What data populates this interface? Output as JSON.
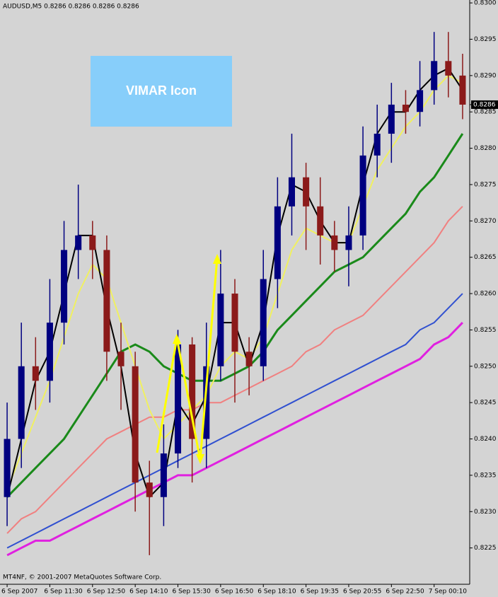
{
  "chart_data": {
    "type": "candlestick",
    "title": "AUDUSD,M5  0.8286 0.8286 0.8286 0.8286",
    "annotation": "VIMAR Icon",
    "footer": "MT4NF, © 2001-2007 MetaQuotes Software Corp.",
    "categories": [
      "6 Sep 2007",
      null,
      null,
      "6 Sep 11:30",
      null,
      null,
      "6 Sep 12:50",
      null,
      null,
      "6 Sep 14:10",
      null,
      null,
      "6 Sep 15:30",
      null,
      null,
      "6 Sep 16:50",
      null,
      null,
      "6 Sep 18:10",
      null,
      null,
      "6 Sep 19:35",
      null,
      null,
      "6 Sep 20:55",
      null,
      null,
      "6 Sep 22:50",
      null,
      null,
      "7 Sep 00:10",
      null,
      null
    ],
    "candles": {
      "up_color": "#000080",
      "down_color": "#8b1a1a",
      "open": [
        0.8232,
        0.824,
        0.825,
        0.8248,
        0.8256,
        0.8266,
        0.8268,
        0.8266,
        0.8252,
        0.825,
        0.8234,
        0.8232,
        0.8238,
        0.8253,
        0.824,
        0.825,
        0.826,
        0.8252,
        0.825,
        0.8262,
        0.8272,
        0.8276,
        0.8272,
        0.8268,
        0.8266,
        0.8268,
        0.8279,
        0.8282,
        0.8286,
        0.8285,
        0.8288,
        0.8292,
        0.829
      ],
      "high": [
        0.8245,
        0.8256,
        0.8254,
        0.8262,
        0.827,
        0.8275,
        0.827,
        0.8268,
        0.8256,
        0.8252,
        0.8237,
        0.8242,
        0.8255,
        0.8254,
        0.8256,
        0.8266,
        0.8262,
        0.8254,
        0.8266,
        0.8276,
        0.8282,
        0.8278,
        0.8276,
        0.827,
        0.8272,
        0.8283,
        0.8286,
        0.8289,
        0.8288,
        0.8292,
        0.8296,
        0.8296,
        0.8293
      ],
      "low": [
        0.8228,
        0.8236,
        0.8244,
        0.8245,
        0.8253,
        0.8262,
        0.8262,
        0.8248,
        0.8244,
        0.823,
        0.8224,
        0.8228,
        0.8236,
        0.8234,
        0.8236,
        0.8248,
        0.8245,
        0.8246,
        0.8248,
        0.8258,
        0.8268,
        0.8266,
        0.8264,
        0.8263,
        0.8261,
        0.8266,
        0.8276,
        0.8278,
        0.8282,
        0.8283,
        0.8286,
        0.8287,
        0.8284
      ],
      "close": [
        0.824,
        0.825,
        0.8248,
        0.8256,
        0.8266,
        0.8268,
        0.8266,
        0.8252,
        0.825,
        0.8234,
        0.8232,
        0.8238,
        0.8253,
        0.824,
        0.825,
        0.826,
        0.8252,
        0.825,
        0.8262,
        0.8272,
        0.8276,
        0.8272,
        0.8268,
        0.8266,
        0.8268,
        0.8279,
        0.8282,
        0.8286,
        0.8285,
        0.8288,
        0.8292,
        0.829,
        0.8286
      ]
    },
    "series": [
      {
        "color": "#e020e0",
        "width": 3,
        "values": [
          0.8224,
          0.8225,
          0.8226,
          0.8226,
          0.8227,
          0.8228,
          0.8229,
          0.823,
          0.8231,
          0.8232,
          0.8233,
          0.8234,
          0.8235,
          0.8235,
          0.8236,
          0.8237,
          0.8238,
          0.8239,
          0.824,
          0.8241,
          0.8242,
          0.8243,
          0.8244,
          0.8245,
          0.8246,
          0.8247,
          0.8248,
          0.8249,
          0.825,
          0.8251,
          0.8253,
          0.8254,
          0.8256
        ]
      },
      {
        "color": "#3050d0",
        "width": 2,
        "values": [
          0.8225,
          0.8226,
          0.8227,
          0.8228,
          0.8229,
          0.823,
          0.8231,
          0.8232,
          0.8233,
          0.8234,
          0.8235,
          0.8236,
          0.8237,
          0.8238,
          0.8239,
          0.824,
          0.8241,
          0.8242,
          0.8243,
          0.8244,
          0.8245,
          0.8246,
          0.8247,
          0.8248,
          0.8249,
          0.825,
          0.8251,
          0.8252,
          0.8253,
          0.8255,
          0.8256,
          0.8258,
          0.826
        ]
      },
      {
        "color": "#f08080",
        "width": 2,
        "values": [
          0.8227,
          0.8229,
          0.823,
          0.8232,
          0.8234,
          0.8236,
          0.8238,
          0.824,
          0.8241,
          0.8242,
          0.8243,
          0.8243,
          0.8244,
          0.8244,
          0.8245,
          0.8245,
          0.8246,
          0.8247,
          0.8248,
          0.8249,
          0.825,
          0.8252,
          0.8253,
          0.8255,
          0.8256,
          0.8257,
          0.8259,
          0.8261,
          0.8263,
          0.8265,
          0.8267,
          0.827,
          0.8272
        ]
      },
      {
        "color": "#1a8a1a",
        "width": 3,
        "values": [
          0.8232,
          0.8234,
          0.8236,
          0.8238,
          0.824,
          0.8243,
          0.8246,
          0.8249,
          0.8252,
          0.8253,
          0.8252,
          0.825,
          0.8249,
          0.8248,
          0.8248,
          0.8248,
          0.8249,
          0.825,
          0.8252,
          0.8255,
          0.8257,
          0.8259,
          0.8261,
          0.8263,
          0.8264,
          0.8265,
          0.8267,
          0.8269,
          0.8271,
          0.8274,
          0.8276,
          0.8279,
          0.8282
        ]
      },
      {
        "color": "#f0f060",
        "width": 2,
        "values": [
          0.8233,
          0.8238,
          0.8243,
          0.8248,
          0.8254,
          0.826,
          0.8264,
          0.8262,
          0.8256,
          0.825,
          0.8244,
          0.824,
          0.8242,
          0.8244,
          0.8246,
          0.825,
          0.8252,
          0.8251,
          0.8254,
          0.826,
          0.8266,
          0.8269,
          0.8268,
          0.8267,
          0.8267,
          0.8272,
          0.8277,
          0.828,
          0.8283,
          0.8285,
          0.8288,
          0.829,
          0.8289
        ]
      },
      {
        "color": "#000000",
        "width": 2,
        "values": [
          0.8232,
          0.824,
          0.8248,
          0.8252,
          0.826,
          0.8268,
          0.8268,
          0.8258,
          0.825,
          0.8238,
          0.8232,
          0.8234,
          0.8245,
          0.8242,
          0.8246,
          0.8256,
          0.8256,
          0.825,
          0.8256,
          0.8268,
          0.8275,
          0.8274,
          0.827,
          0.8267,
          0.8267,
          0.8275,
          0.8282,
          0.8285,
          0.8285,
          0.8288,
          0.829,
          0.8291,
          0.8288
        ]
      }
    ],
    "last_price": {
      "value": 0.8286,
      "label": "0.8286"
    },
    "ylim": [
      0.822,
      0.83004
    ],
    "yticks": [
      {
        "value": 0.8225,
        "label": "0.8225"
      },
      {
        "value": 0.823,
        "label": "0.8230"
      },
      {
        "value": 0.8235,
        "label": "0.8235"
      },
      {
        "value": 0.824,
        "label": "0.8240"
      },
      {
        "value": 0.8245,
        "label": "0.8245"
      },
      {
        "value": 0.825,
        "label": "0.8250"
      },
      {
        "value": 0.8255,
        "label": "0.8255"
      },
      {
        "value": 0.826,
        "label": "0.8260"
      },
      {
        "value": 0.8265,
        "label": "0.8265"
      },
      {
        "value": 0.827,
        "label": "0.8270"
      },
      {
        "value": 0.8275,
        "label": "0.8275"
      },
      {
        "value": 0.828,
        "label": "0.8280"
      },
      {
        "value": 0.8285,
        "label": "0.8285"
      },
      {
        "value": 0.829,
        "label": "0.8290"
      },
      {
        "value": 0.8295,
        "label": "0.8295"
      },
      {
        "value": 0.83,
        "label": "0.8300"
      }
    ]
  }
}
